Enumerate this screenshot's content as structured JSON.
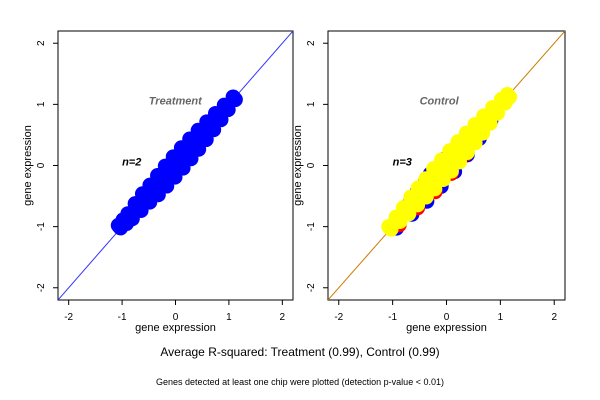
{
  "footer": {
    "summary": "Average R-squared: Treatment (0.99), Control (0.99)",
    "note": "Genes detected at least one chip were plotted (detection p-value < 0.01)"
  },
  "chart_data": [
    {
      "type": "scatter",
      "title": "",
      "panel_label": "Treatment",
      "annotation": "n=2",
      "xlabel": "gene expression",
      "ylabel": "gene expression",
      "xlim": [
        -2.2,
        2.2
      ],
      "ylim": [
        -2.2,
        2.2
      ],
      "x_ticks": [
        -2,
        -1,
        0,
        1,
        2
      ],
      "y_ticks": [
        -2,
        -1,
        0,
        1,
        2
      ],
      "reference_line": {
        "slope": 1,
        "intercept": 0,
        "color": "#3333ff"
      },
      "grid": false,
      "series": [
        {
          "color": "#0000ff",
          "x": [
            -1.05,
            -0.95,
            -0.85,
            -0.7,
            -0.55,
            -0.4,
            -0.25,
            -0.1,
            0.05,
            0.2,
            0.35,
            0.5,
            0.65,
            0.8,
            0.95,
            1.1
          ],
          "y": [
            -1.0,
            -0.92,
            -0.83,
            -0.68,
            -0.53,
            -0.4,
            -0.25,
            -0.1,
            0.05,
            0.2,
            0.35,
            0.5,
            0.65,
            0.8,
            0.95,
            1.1
          ]
        }
      ]
    },
    {
      "type": "scatter",
      "title": "",
      "panel_label": "Control",
      "annotation": "n=3",
      "xlabel": "gene expression",
      "ylabel": "gene expression",
      "xlim": [
        -2.2,
        2.2
      ],
      "ylim": [
        -2.2,
        2.2
      ],
      "x_ticks": [
        -2,
        -1,
        0,
        1,
        2
      ],
      "y_ticks": [
        -2,
        -1,
        0,
        1,
        2
      ],
      "reference_line": {
        "slope": 1,
        "intercept": 0,
        "color": "#cc7a00"
      },
      "grid": false,
      "series": [
        {
          "color": "#0000ff",
          "x": [
            -0.95,
            -0.7,
            -0.45,
            -0.2,
            0.05,
            0.3,
            0.55,
            0.8
          ],
          "y": [
            -1.0,
            -0.74,
            -0.5,
            -0.24,
            0.0,
            0.26,
            0.5,
            0.76
          ]
        },
        {
          "color": "#ff0000",
          "x": [
            -0.9,
            -0.6,
            -0.3,
            0.0,
            0.3,
            0.6
          ],
          "y": [
            -0.95,
            -0.63,
            -0.34,
            -0.04,
            0.25,
            0.56
          ]
        },
        {
          "color": "#ffff00",
          "x": [
            -1.05,
            -0.9,
            -0.75,
            -0.6,
            -0.45,
            -0.3,
            -0.15,
            0.0,
            0.15,
            0.3,
            0.45,
            0.6,
            0.75,
            0.9,
            1.05,
            1.15
          ],
          "y": [
            -1.02,
            -0.88,
            -0.74,
            -0.58,
            -0.44,
            -0.3,
            -0.14,
            0.0,
            0.15,
            0.3,
            0.45,
            0.6,
            0.75,
            0.9,
            1.05,
            1.14
          ]
        }
      ]
    }
  ]
}
